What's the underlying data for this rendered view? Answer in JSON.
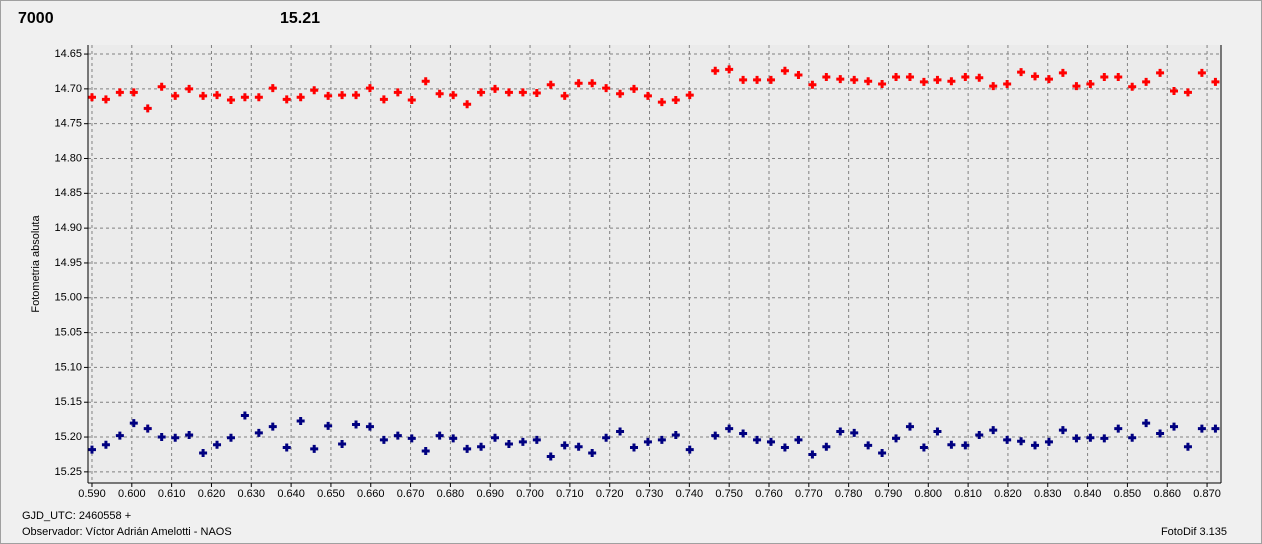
{
  "chart_data": {
    "type": "scatter",
    "y_label": "Fotometria absoluta",
    "x_label": "GJD_UTC: 2460558 +",
    "observer": "Observador: Víctor Adrián Amelotti - NAOS",
    "software": "FotoDif 3.135",
    "grid": true,
    "y_inverted": true,
    "xlim": [
      0.589,
      0.8735
    ],
    "ylim": [
      14.637,
      15.266
    ],
    "xticks": [
      {
        "value": 0.59,
        "label": "0.590"
      },
      {
        "value": 0.6,
        "label": "0.600"
      },
      {
        "value": 0.61,
        "label": "0.610"
      },
      {
        "value": 0.62,
        "label": "0.620"
      },
      {
        "value": 0.63,
        "label": "0.630"
      },
      {
        "value": 0.64,
        "label": "0.640"
      },
      {
        "value": 0.65,
        "label": "0.650"
      },
      {
        "value": 0.66,
        "label": "0.660"
      },
      {
        "value": 0.67,
        "label": "0.670"
      },
      {
        "value": 0.68,
        "label": "0.680"
      },
      {
        "value": 0.69,
        "label": "0.690"
      },
      {
        "value": 0.7,
        "label": "0.700"
      },
      {
        "value": 0.71,
        "label": "0.710"
      },
      {
        "value": 0.72,
        "label": "0.720"
      },
      {
        "value": 0.73,
        "label": "0.730"
      },
      {
        "value": 0.74,
        "label": "0.740"
      },
      {
        "value": 0.75,
        "label": "0.750"
      },
      {
        "value": 0.76,
        "label": "0.760"
      },
      {
        "value": 0.77,
        "label": "0.770"
      },
      {
        "value": 0.78,
        "label": "0.780"
      },
      {
        "value": 0.79,
        "label": "0.790"
      },
      {
        "value": 0.8,
        "label": "0.800"
      },
      {
        "value": 0.81,
        "label": "0.810"
      },
      {
        "value": 0.82,
        "label": "0.820"
      },
      {
        "value": 0.83,
        "label": "0.830"
      },
      {
        "value": 0.84,
        "label": "0.840"
      },
      {
        "value": 0.85,
        "label": "0.850"
      },
      {
        "value": 0.86,
        "label": "0.860"
      },
      {
        "value": 0.87,
        "label": "0.870"
      }
    ],
    "yticks": [
      14.65,
      {
        "value": 14.7,
        "label": "14.70"
      },
      14.75,
      {
        "value": 14.8,
        "label": "14.80"
      },
      14.85,
      {
        "value": 14.9,
        "label": "14.90"
      },
      14.95,
      {
        "value": 15.0,
        "label": "15.00"
      },
      15.05,
      {
        "value": 15.1,
        "label": "15.10"
      },
      15.15,
      {
        "value": 15.2,
        "label": "15.20"
      },
      15.25
    ],
    "x": [
      0.59,
      0.5935,
      0.597,
      0.6005,
      0.604,
      0.6075,
      0.6109,
      0.6144,
      0.6179,
      0.6214,
      0.6249,
      0.6284,
      0.6319,
      0.6354,
      0.6389,
      0.6424,
      0.6458,
      0.6493,
      0.6528,
      0.6563,
      0.6598,
      0.6633,
      0.6668,
      0.6703,
      0.6738,
      0.6773,
      0.6807,
      0.6842,
      0.6877,
      0.6912,
      0.6947,
      0.6982,
      0.7017,
      0.7052,
      0.7087,
      0.7122,
      0.7156,
      0.7191,
      0.7226,
      0.7261,
      0.7296,
      0.7331,
      0.7366,
      0.7401,
      0.7465,
      0.75,
      0.7535,
      0.757,
      0.7605,
      0.764,
      0.7674,
      0.7709,
      0.7744,
      0.7779,
      0.7814,
      0.7849,
      0.7884,
      0.7919,
      0.7954,
      0.7989,
      0.8023,
      0.8058,
      0.8093,
      0.8128,
      0.8163,
      0.8198,
      0.8233,
      0.8268,
      0.8303,
      0.8338,
      0.8372,
      0.8407,
      0.8442,
      0.8477,
      0.8512,
      0.8547,
      0.8582,
      0.8617,
      0.8652,
      0.8687,
      0.8721
    ],
    "series": [
      {
        "name": "7000",
        "color": "#ff0000",
        "values": [
          14.712,
          14.715,
          14.705,
          14.705,
          14.728,
          14.697,
          14.71,
          14.7,
          14.71,
          14.709,
          14.716,
          14.712,
          14.712,
          14.699,
          14.715,
          14.712,
          14.702,
          14.71,
          14.709,
          14.709,
          14.699,
          14.715,
          14.705,
          14.716,
          14.689,
          14.707,
          14.709,
          14.722,
          14.705,
          14.7,
          14.705,
          14.705,
          14.706,
          14.694,
          14.71,
          14.692,
          14.692,
          14.699,
          14.707,
          14.7,
          14.71,
          14.719,
          14.716,
          14.709,
          14.674,
          14.672,
          14.687,
          14.687,
          14.687,
          14.674,
          14.68,
          14.694,
          14.683,
          14.686,
          14.687,
          14.689,
          14.693,
          14.683,
          14.683,
          14.69,
          14.687,
          14.689,
          14.683,
          14.684,
          14.696,
          14.693,
          14.676,
          14.682,
          14.686,
          14.677,
          14.696,
          14.693,
          14.683,
          14.683,
          14.697,
          14.69,
          14.677,
          14.703,
          14.705,
          14.677,
          14.69
        ]
      },
      {
        "name": "15.21",
        "color": "#000080",
        "values": [
          15.218,
          15.211,
          15.198,
          15.18,
          15.188,
          15.2,
          15.201,
          15.197,
          15.223,
          15.211,
          15.201,
          15.169,
          15.194,
          15.185,
          15.215,
          15.177,
          15.217,
          15.184,
          15.21,
          15.182,
          15.185,
          15.204,
          15.198,
          15.202,
          15.22,
          15.198,
          15.202,
          15.217,
          15.214,
          15.201,
          15.21,
          15.207,
          15.204,
          15.228,
          15.212,
          15.214,
          15.223,
          15.201,
          15.192,
          15.215,
          15.207,
          15.204,
          15.197,
          15.218,
          15.198,
          15.188,
          15.195,
          15.204,
          15.207,
          15.215,
          15.204,
          15.225,
          15.214,
          15.192,
          15.194,
          15.212,
          15.223,
          15.202,
          15.185,
          15.215,
          15.192,
          15.211,
          15.212,
          15.197,
          15.19,
          15.204,
          15.206,
          15.212,
          15.207,
          15.19,
          15.202,
          15.201,
          15.202,
          15.188,
          15.201,
          15.18,
          15.195,
          15.185,
          15.214,
          15.188,
          15.188
        ]
      }
    ]
  }
}
